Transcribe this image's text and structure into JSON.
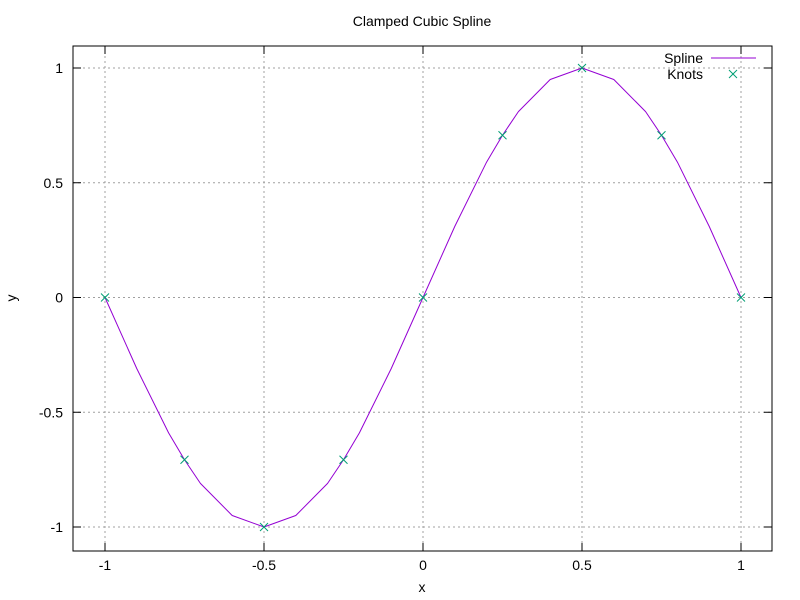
{
  "chart_data": {
    "type": "line",
    "title": "Clamped Cubic Spline",
    "xlabel": "x",
    "ylabel": "y",
    "xlim": [
      -1,
      1
    ],
    "ylim": [
      -1.1,
      1.1
    ],
    "x_ticks": [
      -1,
      -0.5,
      0,
      0.5,
      1
    ],
    "x_tick_labels": [
      "-1",
      "-0.5",
      "0",
      "0.5",
      "1"
    ],
    "y_ticks": [
      -1,
      -0.5,
      0,
      0.5,
      1
    ],
    "y_tick_labels": [
      "-1",
      "-0.5",
      "0",
      "0.5",
      "1"
    ],
    "grid": true,
    "legend_position": "top-right",
    "series": [
      {
        "name": "Spline",
        "kind": "line",
        "color": "#9400d3",
        "x": [
          -1,
          -0.9,
          -0.8,
          -0.75,
          -0.7,
          -0.6,
          -0.5,
          -0.4,
          -0.3,
          -0.25,
          -0.2,
          -0.1,
          0,
          0.1,
          0.2,
          0.25,
          0.3,
          0.4,
          0.5,
          0.6,
          0.7,
          0.75,
          0.8,
          0.9,
          1
        ],
        "y": [
          0,
          -0.31,
          -0.59,
          -0.707,
          -0.81,
          -0.95,
          -1,
          -0.95,
          -0.81,
          -0.707,
          -0.59,
          -0.31,
          0,
          0.31,
          0.59,
          0.707,
          0.81,
          0.95,
          1,
          0.95,
          0.81,
          0.707,
          0.59,
          0.31,
          0
        ]
      },
      {
        "name": "Knots",
        "kind": "scatter",
        "marker": "x",
        "color": "#009e73",
        "x": [
          -1,
          -0.75,
          -0.5,
          -0.25,
          0,
          0.25,
          0.5,
          0.75,
          1
        ],
        "y": [
          0,
          -0.707,
          -1,
          -0.707,
          0,
          0.707,
          1,
          0.707,
          0
        ]
      }
    ]
  }
}
